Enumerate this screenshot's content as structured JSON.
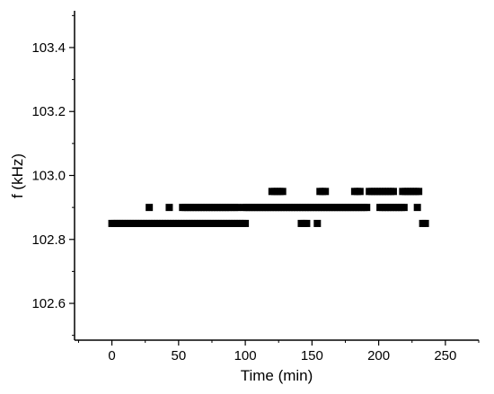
{
  "chart_data": {
    "type": "scatter",
    "title": "",
    "xlabel": "Time (min)",
    "ylabel": "f (kHz)",
    "xlim": [
      -28,
      275
    ],
    "ylim": [
      102.485,
      103.515
    ],
    "x_ticks": [
      0,
      50,
      100,
      150,
      200,
      250
    ],
    "x_tick_labels": [
      "0",
      "50",
      "100",
      "150",
      "200",
      "250"
    ],
    "y_ticks": [
      102.6,
      102.8,
      103.0,
      103.2,
      103.4
    ],
    "y_tick_labels": [
      "102.6",
      "102.8",
      "103.0",
      "103.2",
      "103.4"
    ],
    "grid": false,
    "legend": "none",
    "marker": "square",
    "marker_color": "#000000",
    "series": [
      {
        "name": "",
        "color": "#000000",
        "x": [
          0,
          2,
          4,
          6,
          8,
          10,
          12,
          14,
          16,
          18,
          20,
          22,
          24,
          26,
          28,
          30,
          32,
          34,
          36,
          38,
          40,
          42,
          44,
          46,
          48,
          50,
          52,
          54,
          56,
          58,
          60,
          62,
          64,
          66,
          68,
          70,
          72,
          74,
          76,
          78,
          80,
          82,
          84,
          86,
          88,
          90,
          92,
          94,
          96,
          98,
          100,
          142,
          144,
          146,
          154,
          233,
          235,
          28,
          43,
          53,
          55,
          57,
          59,
          61,
          63,
          65,
          67,
          69,
          71,
          73,
          75,
          77,
          79,
          81,
          83,
          85,
          87,
          89,
          92,
          94,
          99,
          101,
          103,
          105,
          107,
          109,
          111,
          113,
          115,
          117,
          119,
          121,
          123,
          125,
          127,
          129,
          131,
          133,
          135,
          137,
          139,
          141,
          143,
          145,
          147,
          149,
          151,
          153,
          155,
          157,
          159,
          161,
          163,
          165,
          167,
          169,
          171,
          173,
          175,
          177,
          179,
          181,
          183,
          185,
          187,
          189,
          191,
          201,
          203,
          205,
          207,
          209,
          211,
          213,
          215,
          217,
          219,
          229,
          120,
          122,
          124,
          126,
          128,
          156,
          158,
          160,
          182,
          184,
          186,
          193,
          195,
          197,
          199,
          201,
          203,
          205,
          207,
          209,
          211,
          218,
          220,
          222,
          224,
          226,
          228,
          230
        ],
        "y": [
          102.85,
          102.85,
          102.85,
          102.85,
          102.85,
          102.85,
          102.85,
          102.85,
          102.85,
          102.85,
          102.85,
          102.85,
          102.85,
          102.85,
          102.85,
          102.85,
          102.85,
          102.85,
          102.85,
          102.85,
          102.85,
          102.85,
          102.85,
          102.85,
          102.85,
          102.85,
          102.85,
          102.85,
          102.85,
          102.85,
          102.85,
          102.85,
          102.85,
          102.85,
          102.85,
          102.85,
          102.85,
          102.85,
          102.85,
          102.85,
          102.85,
          102.85,
          102.85,
          102.85,
          102.85,
          102.85,
          102.85,
          102.85,
          102.85,
          102.85,
          102.85,
          102.85,
          102.85,
          102.85,
          102.85,
          102.85,
          102.85,
          102.9,
          102.9,
          102.9,
          102.9,
          102.9,
          102.9,
          102.9,
          102.9,
          102.9,
          102.9,
          102.9,
          102.9,
          102.9,
          102.9,
          102.9,
          102.9,
          102.9,
          102.9,
          102.9,
          102.9,
          102.9,
          102.9,
          102.9,
          102.9,
          102.9,
          102.9,
          102.9,
          102.9,
          102.9,
          102.9,
          102.9,
          102.9,
          102.9,
          102.9,
          102.9,
          102.9,
          102.9,
          102.9,
          102.9,
          102.9,
          102.9,
          102.9,
          102.9,
          102.9,
          102.9,
          102.9,
          102.9,
          102.9,
          102.9,
          102.9,
          102.9,
          102.9,
          102.9,
          102.9,
          102.9,
          102.9,
          102.9,
          102.9,
          102.9,
          102.9,
          102.9,
          102.9,
          102.9,
          102.9,
          102.9,
          102.9,
          102.9,
          102.9,
          102.9,
          102.9,
          102.9,
          102.9,
          102.9,
          102.9,
          102.9,
          102.9,
          102.9,
          102.9,
          102.9,
          102.9,
          102.9,
          102.95,
          102.95,
          102.95,
          102.95,
          102.95,
          102.95,
          102.95,
          102.95,
          102.95,
          102.95,
          102.95,
          102.95,
          102.95,
          102.95,
          102.95,
          102.95,
          102.95,
          102.95,
          102.95,
          102.95,
          102.95,
          102.95,
          102.95,
          102.95,
          102.95,
          102.95,
          102.95,
          102.95
        ]
      }
    ]
  }
}
